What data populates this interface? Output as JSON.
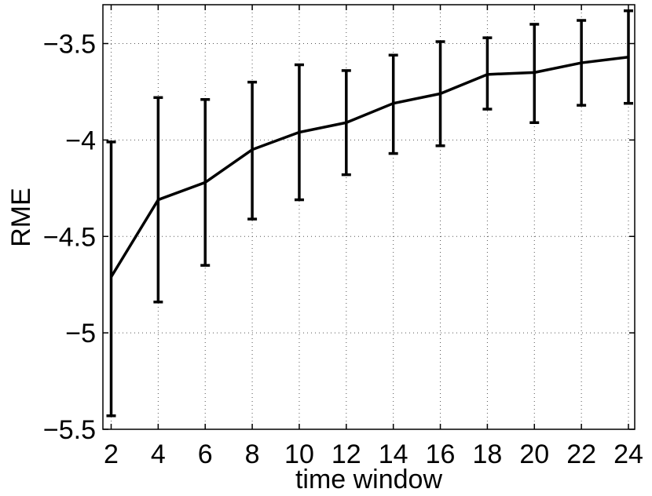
{
  "chart_data": {
    "type": "line",
    "title": "",
    "xlabel": "time window",
    "ylabel": "RME",
    "xlim": [
      2,
      24
    ],
    "ylim": [
      -5.5,
      -3.3
    ],
    "grid": true,
    "x_ticks": [
      2,
      4,
      6,
      8,
      10,
      12,
      14,
      16,
      18,
      20,
      22,
      24
    ],
    "x_tick_labels": [
      "2",
      "4",
      "6",
      "8",
      "10",
      "12",
      "14",
      "16",
      "18",
      "20",
      "22",
      "24"
    ],
    "y_ticks": [
      -5.5,
      -5,
      -4.5,
      -4,
      -3.5
    ],
    "y_tick_labels": [
      "−5.5",
      "−5",
      "−4.5",
      "−4",
      "−3.5"
    ],
    "series": [
      {
        "x": [
          2,
          4,
          6,
          8,
          10,
          12,
          14,
          16,
          18,
          20,
          22,
          24
        ],
        "y": [
          -4.71,
          -4.31,
          -4.22,
          -4.05,
          -3.96,
          -3.91,
          -3.81,
          -3.76,
          -3.66,
          -3.65,
          -3.6,
          -3.57
        ],
        "y_lower": [
          -5.43,
          -4.84,
          -4.65,
          -4.41,
          -4.31,
          -4.18,
          -4.07,
          -4.03,
          -3.84,
          -3.91,
          -3.82,
          -3.81
        ],
        "y_upper": [
          -4.01,
          -3.78,
          -3.79,
          -3.7,
          -3.61,
          -3.64,
          -3.56,
          -3.49,
          -3.47,
          -3.4,
          -3.38,
          -3.33
        ],
        "color": "#000000"
      }
    ]
  }
}
